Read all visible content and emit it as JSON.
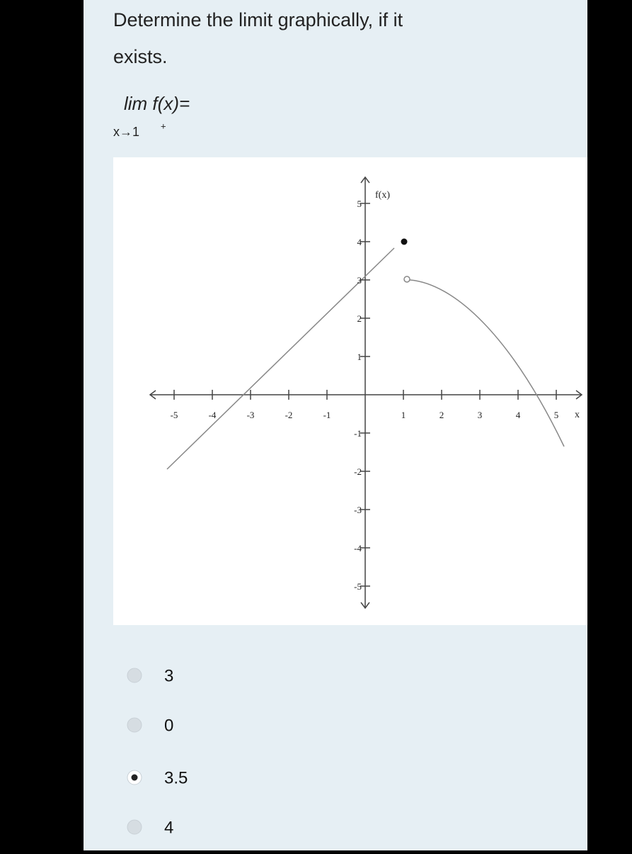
{
  "question": {
    "line1": "Determine the limit graphically, if it",
    "line2": "exists.",
    "limit": "lim f(x)=",
    "subscript": "x→1",
    "superscript": "+"
  },
  "graph": {
    "y_axis_label": "f(x)",
    "x_axis_label": "x",
    "x_ticks": [
      "-5",
      "-4",
      "-3",
      "-2",
      "-1",
      "1",
      "2",
      "3",
      "4",
      "5"
    ],
    "y_ticks": [
      "5",
      "4",
      "3",
      "2",
      "1",
      "-1",
      "-2",
      "-3",
      "-4",
      "-5"
    ]
  },
  "options": [
    {
      "label": "3",
      "selected": false
    },
    {
      "label": "0",
      "selected": false
    },
    {
      "label": "3.5",
      "selected": true
    },
    {
      "label": "4",
      "selected": false
    }
  ]
}
